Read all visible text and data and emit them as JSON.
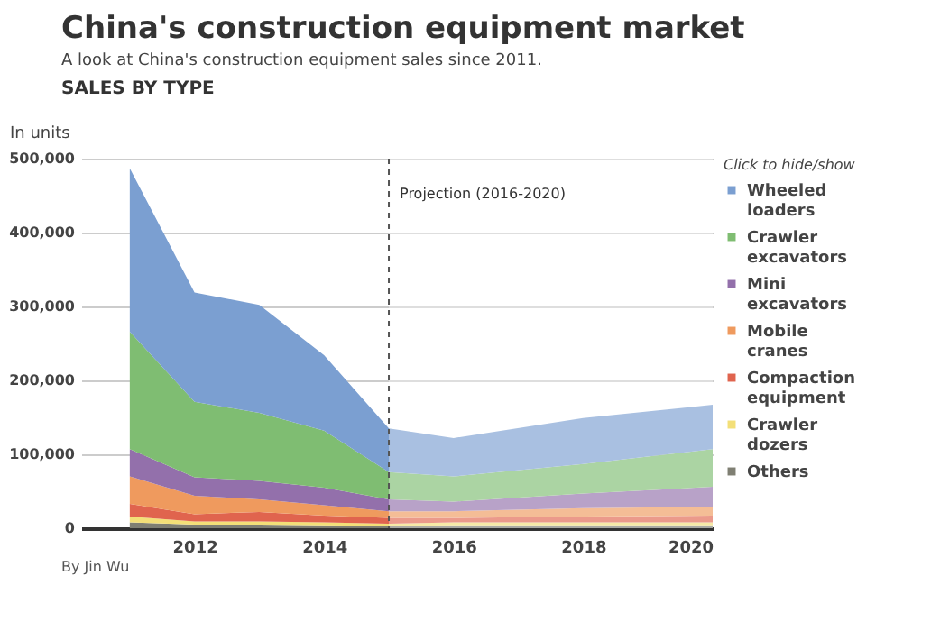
{
  "chart_data": {
    "type": "area",
    "title": "China's construction equipment market",
    "subtitle": "A look at China's construction equipment sales since 2011.",
    "ylabel": "In units",
    "legend_title": "Click to hide/show",
    "annotations": [
      "SALES BY TYPE",
      "By Jin Wu"
    ],
    "x": [
      2011,
      2012,
      2013,
      2014,
      2015,
      2016,
      2018,
      2020
    ],
    "stacked": true,
    "series": [
      {
        "name": "Others",
        "color": "#7f7f73",
        "values": [
          8000,
          5000,
          5000,
          4000,
          3000,
          4000,
          4000,
          4000
        ]
      },
      {
        "name": "Crawler dozers",
        "color": "#f3df78",
        "values": [
          8000,
          4000,
          4000,
          4000,
          3000,
          4000,
          4000,
          4000
        ]
      },
      {
        "name": "Compaction equipment",
        "color": "#e0644e",
        "values": [
          17000,
          10000,
          13000,
          9000,
          8000,
          6000,
          8000,
          9000
        ]
      },
      {
        "name": "Mobile cranes",
        "color": "#ef9a5e",
        "values": [
          37000,
          25000,
          17000,
          14000,
          9000,
          9000,
          11000,
          12000
        ]
      },
      {
        "name": "Mini excavators",
        "color": "#9370ab",
        "values": [
          37000,
          25000,
          25000,
          24000,
          16000,
          13000,
          20000,
          27000
        ]
      },
      {
        "name": "Crawler excavators",
        "color": "#7fbd72",
        "values": [
          159000,
          102000,
          92000,
          77000,
          37000,
          34000,
          40000,
          51000
        ]
      },
      {
        "name": "Wheeled loaders",
        "color": "#7b9fd1",
        "values": [
          221000,
          148000,
          146000,
          102000,
          59000,
          52000,
          62000,
          60000
        ]
      }
    ],
    "xlim": [
      2010.25,
      2020
    ],
    "xticks": [
      2012,
      2014,
      2016,
      2018,
      2020
    ],
    "ylim": [
      0,
      500000
    ],
    "yticks": [
      0,
      {
        "value": 100000,
        "label": "100,000"
      },
      {
        "value": 200000,
        "label": "200,000"
      },
      {
        "value": 300000,
        "label": "300,000"
      },
      {
        "value": 400000,
        "label": "400,000"
      },
      {
        "value": 500000,
        "label": "500,000"
      }
    ],
    "grid": "y",
    "legend": "right",
    "ref_lines": [
      {
        "axis": "x",
        "value": 2015,
        "label": "Projection (2016-2020)",
        "line_style": "dashed"
      }
    ],
    "bands": [
      {
        "axis": "x",
        "from": 2015,
        "to": 2020,
        "color": "#ffffff"
      }
    ]
  }
}
